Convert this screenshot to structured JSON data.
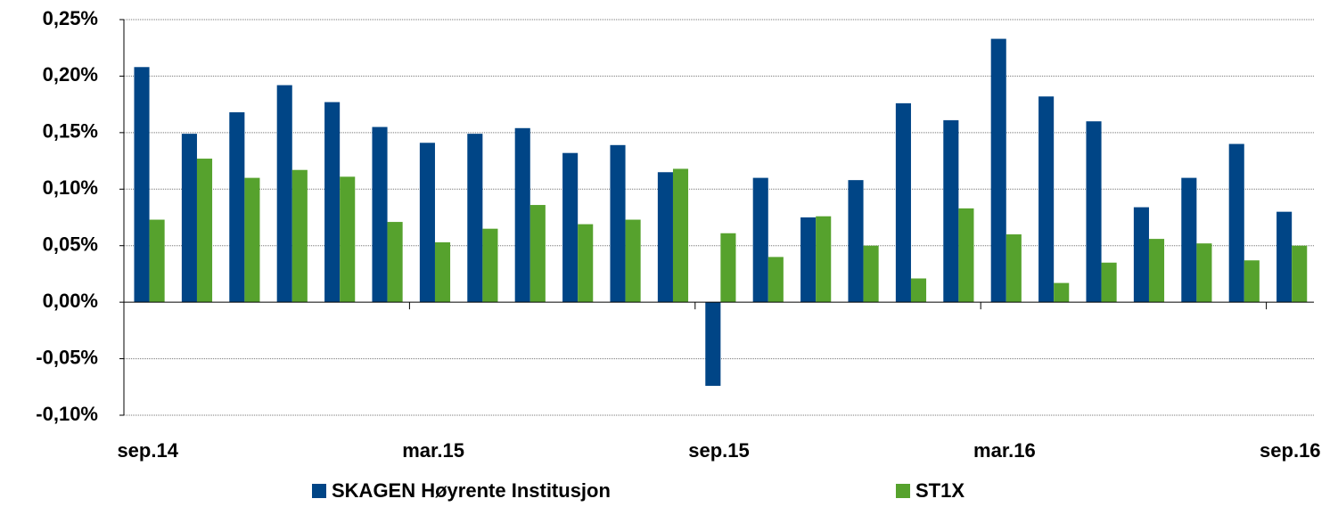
{
  "chart_data": {
    "type": "bar",
    "categories": [
      "sep.14",
      null,
      null,
      null,
      null,
      null,
      "mar.15",
      null,
      null,
      null,
      null,
      null,
      "sep.15",
      null,
      null,
      null,
      null,
      null,
      "mar.16",
      null,
      null,
      null,
      null,
      null,
      "sep.16"
    ],
    "series": [
      {
        "name": "SKAGEN Høyrente Institusjon",
        "color": "#004586",
        "values": [
          0.208,
          0.149,
          0.168,
          0.192,
          0.177,
          0.155,
          0.141,
          0.149,
          0.154,
          0.132,
          0.139,
          0.115,
          -0.074,
          0.11,
          0.075,
          0.108,
          0.176,
          0.161,
          0.233,
          0.182,
          0.16,
          0.084,
          0.11,
          0.14,
          0.08
        ]
      },
      {
        "name": "ST1X",
        "color": "#56a22d",
        "values": [
          0.073,
          0.127,
          0.11,
          0.117,
          0.111,
          0.071,
          0.053,
          0.065,
          0.086,
          0.069,
          0.073,
          0.118,
          0.061,
          0.04,
          0.076,
          0.05,
          0.021,
          0.083,
          0.06,
          0.017,
          0.035,
          0.056,
          0.052,
          0.037,
          0.05
        ]
      }
    ],
    "ylim": [
      -0.1,
      0.25
    ],
    "yticks": [
      {
        "value": -0.1,
        "label": "-0,10%"
      },
      {
        "value": -0.05,
        "label": "-0,05%"
      },
      {
        "value": 0,
        "label": "0,00%"
      },
      {
        "value": 0.05,
        "label": "0,05%"
      },
      {
        "value": 0.1,
        "label": "0,10%"
      },
      {
        "value": 0.15,
        "label": "0,15%"
      },
      {
        "value": 0.2,
        "label": "0,20%"
      },
      {
        "value": 0.25,
        "label": "0,25%"
      }
    ],
    "grid": true,
    "legend": "bottom"
  }
}
